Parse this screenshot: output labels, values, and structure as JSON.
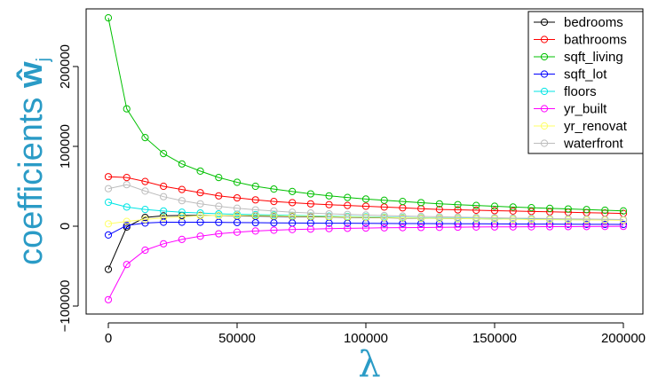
{
  "chart_data": {
    "type": "line",
    "xlabel": "λ",
    "ylabel": {
      "main": "coefficients ",
      "hat": "ŵ",
      "sub": "j"
    },
    "xlim": [
      0,
      200000
    ],
    "ylim": [
      -100000,
      260000
    ],
    "xticks": [
      0,
      50000,
      100000,
      150000,
      200000
    ],
    "xtick_labels": [
      "0",
      "50000",
      "100000",
      "150000",
      "200000"
    ],
    "yticks": [
      -100000,
      0,
      100000,
      200000
    ],
    "ytick_labels": [
      "−100000",
      "0",
      "100000",
      "200000"
    ],
    "legend_position": "top-right",
    "grid": false,
    "x": [
      0,
      7143,
      14286,
      21429,
      28571,
      35714,
      42857,
      50000,
      57143,
      64286,
      71429,
      78571,
      85714,
      92857,
      100000,
      107143,
      114286,
      121429,
      128571,
      135714,
      142857,
      150000,
      157143,
      164286,
      171429,
      178571,
      185714,
      192857,
      200000
    ],
    "series": [
      {
        "name": "bedrooms",
        "color": "#000000",
        "values": [
          -54000,
          -1000,
          11000,
          13000,
          13500,
          13500,
          13300,
          13000,
          12700,
          12400,
          12100,
          11800,
          11500,
          11200,
          10900,
          10600,
          10300,
          10000,
          9800,
          9600,
          9400,
          9200,
          9000,
          8800,
          8600,
          8400,
          8200,
          8000,
          7800
        ]
      },
      {
        "name": "bathrooms",
        "color": "#ff0000",
        "values": [
          62000,
          61000,
          56000,
          50000,
          46000,
          42000,
          38000,
          35500,
          33000,
          31000,
          29500,
          28000,
          27000,
          26000,
          25000,
          24000,
          23000,
          22000,
          21000,
          20500,
          20000,
          19500,
          19000,
          18500,
          18000,
          17500,
          17000,
          16500,
          16000
        ]
      },
      {
        "name": "sqft_living",
        "color": "#00c000",
        "values": [
          261000,
          147000,
          111000,
          91000,
          78000,
          69000,
          61000,
          55000,
          50000,
          46500,
          43500,
          40500,
          38000,
          36000,
          34000,
          32500,
          31000,
          29500,
          28000,
          27000,
          26000,
          25000,
          24000,
          23200,
          22400,
          21600,
          20800,
          20000,
          19200
        ]
      },
      {
        "name": "sqft_lot",
        "color": "#0000ff",
        "values": [
          -11000,
          1000,
          4000,
          5000,
          5000,
          5000,
          4800,
          4600,
          4400,
          4200,
          4000,
          3900,
          3800,
          3700,
          3600,
          3500,
          3400,
          3300,
          3200,
          3100,
          3000,
          2900,
          2800,
          2700,
          2600,
          2500,
          2400,
          2300,
          2200
        ]
      },
      {
        "name": "floors",
        "color": "#00e5e5",
        "values": [
          30000,
          24000,
          21000,
          19000,
          17500,
          16500,
          15500,
          15000,
          14500,
          14000,
          13500,
          13000,
          12600,
          12200,
          11800,
          11400,
          11000,
          10600,
          10300,
          10000,
          9700,
          9400,
          9100,
          8800,
          8600,
          8400,
          8200,
          8000,
          7800
        ]
      },
      {
        "name": "yr_built",
        "color": "#ff00ff",
        "values": [
          -92000,
          -48000,
          -30000,
          -22000,
          -16500,
          -12500,
          -9500,
          -7500,
          -6000,
          -5000,
          -4200,
          -3600,
          -3000,
          -2600,
          -2300,
          -2000,
          -1800,
          -1600,
          -1400,
          -1200,
          -1000,
          -900,
          -800,
          -700,
          -600,
          -500,
          -400,
          -300,
          -200
        ]
      },
      {
        "name": "yr_renovat",
        "color": "#ffff66",
        "values": [
          3000,
          6000,
          8500,
          10500,
          12000,
          13000,
          13500,
          13500,
          13300,
          13000,
          12700,
          12400,
          12000,
          11600,
          11200,
          10800,
          10500,
          10200,
          9900,
          9600,
          9300,
          9000,
          8700,
          8400,
          8200,
          8000,
          7800,
          7600,
          7400
        ]
      },
      {
        "name": "waterfront",
        "color": "#bdbdbd",
        "values": [
          47000,
          52000,
          44000,
          37000,
          32000,
          28000,
          25000,
          22500,
          20500,
          19000,
          17500,
          16500,
          15500,
          14800,
          14000,
          13400,
          12800,
          12200,
          11800,
          11400,
          11000,
          10600,
          10200,
          9900,
          9600,
          9300,
          9000,
          8700,
          8400
        ]
      }
    ]
  }
}
